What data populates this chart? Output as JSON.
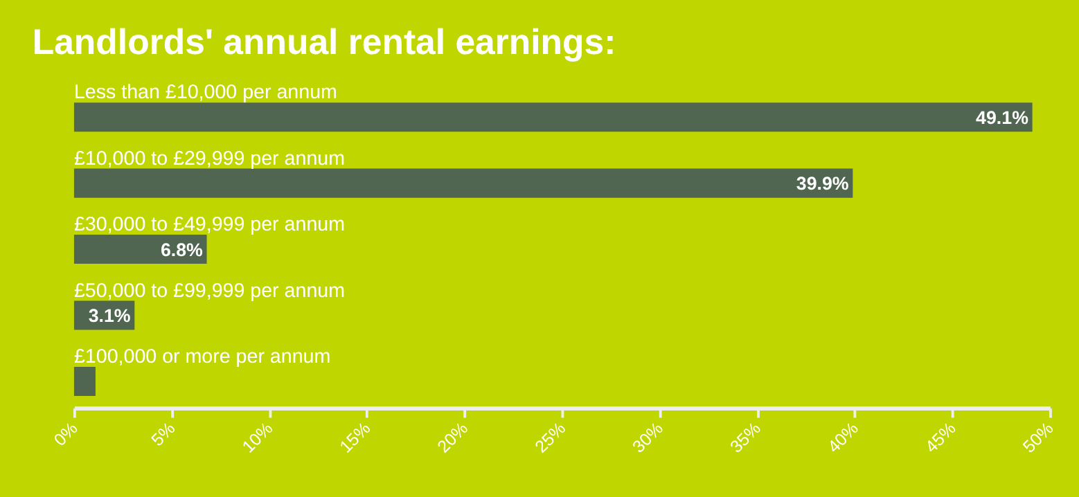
{
  "chart_data": {
    "type": "bar",
    "orientation": "horizontal",
    "title": "Landlords' annual rental earnings:",
    "categories": [
      "Less than £10,000 per annum",
      "£10,000 to £29,999 per annum",
      "£30,000 to £49,999 per annum",
      "£50,000 to £99,999 per annum",
      "£100,000 or more per annum"
    ],
    "values": [
      49.1,
      39.9,
      6.8,
      3.1,
      1.1
    ],
    "value_labels": [
      "49.1%",
      "39.9%",
      "6.8%",
      "3.1%",
      null
    ],
    "color": "#506650",
    "xlim": [
      0,
      50
    ],
    "xticks": [
      {
        "value": 0,
        "label": "0%"
      },
      {
        "value": 5,
        "label": "5%"
      },
      {
        "value": 10,
        "label": "10%"
      },
      {
        "value": 15,
        "label": "15%"
      },
      {
        "value": 20,
        "label": "20%"
      },
      {
        "value": 25,
        "label": "25%"
      },
      {
        "value": 30,
        "label": "30%"
      },
      {
        "value": 35,
        "label": "35%"
      },
      {
        "value": 40,
        "label": "40%"
      },
      {
        "value": 45,
        "label": "45%"
      },
      {
        "value": 50,
        "label": "50%"
      }
    ],
    "grid": false
  }
}
